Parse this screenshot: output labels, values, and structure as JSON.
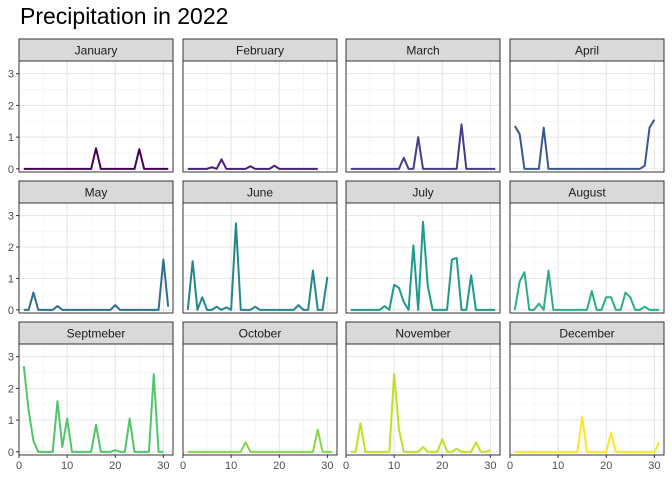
{
  "chart_data": {
    "type": "line",
    "title": "Precipitation in 2022",
    "facet_by": "month",
    "layout": "4 columns x 3 rows, shared y axis",
    "ylim": [
      -0.1,
      3.4
    ],
    "yticks": [
      0,
      1,
      2,
      3
    ],
    "xlim": [
      0,
      32
    ],
    "xticks": [
      0,
      10,
      20,
      30
    ],
    "grid": true,
    "legend": "none",
    "panels": [
      {
        "name": "January",
        "color": "#440154",
        "x": [
          1,
          2,
          3,
          4,
          5,
          6,
          7,
          8,
          9,
          10,
          11,
          12,
          13,
          14,
          15,
          16,
          17,
          18,
          19,
          20,
          21,
          22,
          23,
          24,
          25,
          26,
          27,
          28,
          29,
          30,
          31
        ],
        "values": [
          0,
          0,
          0,
          0,
          0,
          0,
          0,
          0,
          0,
          0,
          0,
          0,
          0,
          0,
          0,
          0.65,
          0,
          0,
          0,
          0,
          0,
          0,
          0,
          0,
          0.62,
          0,
          0,
          0,
          0,
          0,
          0
        ]
      },
      {
        "name": "February",
        "color": "#482173",
        "x": [
          1,
          2,
          3,
          4,
          5,
          6,
          7,
          8,
          9,
          10,
          11,
          12,
          13,
          14,
          15,
          16,
          17,
          18,
          19,
          20,
          21,
          22,
          23,
          24,
          25,
          26,
          27,
          28
        ],
        "values": [
          0,
          0,
          0,
          0,
          0,
          0.05,
          0,
          0.3,
          0,
          0,
          0,
          0,
          0,
          0.08,
          0,
          0,
          0,
          0,
          0.1,
          0,
          0,
          0,
          0,
          0,
          0,
          0,
          0,
          0
        ]
      },
      {
        "name": "March",
        "color": "#433E85",
        "x": [
          1,
          2,
          3,
          4,
          5,
          6,
          7,
          8,
          9,
          10,
          11,
          12,
          13,
          14,
          15,
          16,
          17,
          18,
          19,
          20,
          21,
          22,
          23,
          24,
          25,
          26,
          27,
          28,
          29,
          30,
          31
        ],
        "values": [
          0,
          0,
          0,
          0,
          0,
          0,
          0,
          0,
          0,
          0,
          0,
          0.35,
          0,
          0,
          1.0,
          0,
          0,
          0,
          0,
          0,
          0,
          0,
          0,
          1.4,
          0,
          0,
          0,
          0,
          0,
          0,
          0
        ]
      },
      {
        "name": "April",
        "color": "#38598C",
        "x": [
          1,
          2,
          3,
          4,
          5,
          6,
          7,
          8,
          9,
          10,
          11,
          12,
          13,
          14,
          15,
          16,
          17,
          18,
          19,
          20,
          21,
          22,
          23,
          24,
          25,
          26,
          27,
          28,
          29,
          30
        ],
        "values": [
          1.35,
          1.1,
          0,
          0,
          0,
          0,
          1.3,
          0,
          0,
          0,
          0,
          0,
          0,
          0,
          0,
          0,
          0,
          0,
          0,
          0,
          0,
          0,
          0,
          0,
          0,
          0,
          0,
          0.1,
          1.3,
          1.55
        ]
      },
      {
        "name": "May",
        "color": "#2D708E",
        "x": [
          1,
          2,
          3,
          4,
          5,
          6,
          7,
          8,
          9,
          10,
          11,
          12,
          13,
          14,
          15,
          16,
          17,
          18,
          19,
          20,
          21,
          22,
          23,
          24,
          25,
          26,
          27,
          28,
          29,
          30,
          31
        ],
        "values": [
          0,
          0,
          0.55,
          0,
          0,
          0,
          0,
          0.12,
          0,
          0,
          0,
          0,
          0,
          0,
          0,
          0,
          0,
          0,
          0,
          0.15,
          0,
          0,
          0,
          0,
          0,
          0,
          0,
          0,
          0,
          1.6,
          0.1
        ]
      },
      {
        "name": "June",
        "color": "#25858E",
        "x": [
          1,
          2,
          3,
          4,
          5,
          6,
          7,
          8,
          9,
          10,
          11,
          12,
          13,
          14,
          15,
          16,
          17,
          18,
          19,
          20,
          21,
          22,
          23,
          24,
          25,
          26,
          27,
          28,
          29,
          30
        ],
        "values": [
          0,
          1.55,
          0,
          0.4,
          0,
          0,
          0.1,
          0,
          0.08,
          0,
          2.75,
          0,
          0,
          0,
          0.1,
          0,
          0,
          0,
          0,
          0,
          0,
          0,
          0,
          0.15,
          0,
          0,
          1.25,
          0,
          0,
          1.05
        ]
      },
      {
        "name": "July",
        "color": "#1E9B8A",
        "x": [
          1,
          2,
          3,
          4,
          5,
          6,
          7,
          8,
          9,
          10,
          11,
          12,
          13,
          14,
          15,
          16,
          17,
          18,
          19,
          20,
          21,
          22,
          23,
          24,
          25,
          26,
          27,
          28,
          29,
          30,
          31
        ],
        "values": [
          0,
          0,
          0,
          0,
          0,
          0,
          0,
          0.12,
          0,
          0.8,
          0.7,
          0.25,
          0,
          2.05,
          0,
          2.8,
          0.75,
          0,
          0,
          0,
          0,
          1.6,
          1.65,
          0,
          0,
          1.1,
          0,
          0,
          0,
          0,
          0
        ]
      },
      {
        "name": "August",
        "color": "#2BB07F",
        "x": [
          1,
          2,
          3,
          4,
          5,
          6,
          7,
          8,
          9,
          10,
          11,
          12,
          13,
          14,
          15,
          16,
          17,
          18,
          19,
          20,
          21,
          22,
          23,
          24,
          25,
          26,
          27,
          28,
          29,
          30,
          31
        ],
        "values": [
          0,
          0.9,
          1.2,
          0,
          0,
          0.2,
          0,
          1.25,
          0,
          0,
          0,
          0,
          0,
          0,
          0,
          0,
          0.6,
          0,
          0,
          0.4,
          0.4,
          0,
          0,
          0.55,
          0.4,
          0,
          0,
          0.1,
          0,
          0,
          0
        ]
      },
      {
        "name": "Septmeber",
        "color": "#51C56A",
        "x": [
          1,
          2,
          3,
          4,
          5,
          6,
          7,
          8,
          9,
          10,
          11,
          12,
          13,
          14,
          15,
          16,
          17,
          18,
          19,
          20,
          21,
          22,
          23,
          24,
          25,
          26,
          27,
          28,
          29,
          30
        ],
        "values": [
          2.7,
          1.3,
          0.35,
          0,
          0,
          0,
          0,
          1.6,
          0.15,
          1.05,
          0,
          0,
          0,
          0,
          0,
          0.85,
          0,
          0,
          0,
          0.05,
          0,
          0,
          1.05,
          0,
          0,
          0,
          0,
          2.45,
          0,
          0
        ]
      },
      {
        "name": "October",
        "color": "#85D54A",
        "x": [
          1,
          2,
          3,
          4,
          5,
          6,
          7,
          8,
          9,
          10,
          11,
          12,
          13,
          14,
          15,
          16,
          17,
          18,
          19,
          20,
          21,
          22,
          23,
          24,
          25,
          26,
          27,
          28,
          29,
          30,
          31
        ],
        "values": [
          0,
          0,
          0,
          0,
          0,
          0,
          0,
          0,
          0,
          0,
          0,
          0,
          0.3,
          0,
          0,
          0,
          0,
          0,
          0,
          0,
          0,
          0,
          0,
          0,
          0,
          0,
          0,
          0.7,
          0,
          0,
          0
        ]
      },
      {
        "name": "November",
        "color": "#C2DF23",
        "x": [
          1,
          2,
          3,
          4,
          5,
          6,
          7,
          8,
          9,
          10,
          11,
          12,
          13,
          14,
          15,
          16,
          17,
          18,
          19,
          20,
          21,
          22,
          23,
          24,
          25,
          26,
          27,
          28,
          29,
          30
        ],
        "values": [
          0,
          0,
          0.9,
          0,
          0,
          0,
          0,
          0,
          0,
          2.45,
          0.7,
          0,
          0,
          0,
          0,
          0.15,
          0,
          0,
          0,
          0.4,
          0,
          0,
          0.1,
          0,
          0,
          0,
          0.3,
          0,
          0,
          0.05
        ]
      },
      {
        "name": "December",
        "color": "#FDE725",
        "x": [
          1,
          2,
          3,
          4,
          5,
          6,
          7,
          8,
          9,
          10,
          11,
          12,
          13,
          14,
          15,
          16,
          17,
          18,
          19,
          20,
          21,
          22,
          23,
          24,
          25,
          26,
          27,
          28,
          29,
          30,
          31
        ],
        "values": [
          0,
          0,
          0,
          0,
          0,
          0,
          0,
          0,
          0,
          0,
          0,
          0,
          0,
          0,
          1.1,
          0,
          0,
          0,
          0,
          0,
          0.6,
          0,
          0,
          0,
          0,
          0,
          0,
          0,
          0,
          0,
          0.3
        ]
      }
    ]
  }
}
